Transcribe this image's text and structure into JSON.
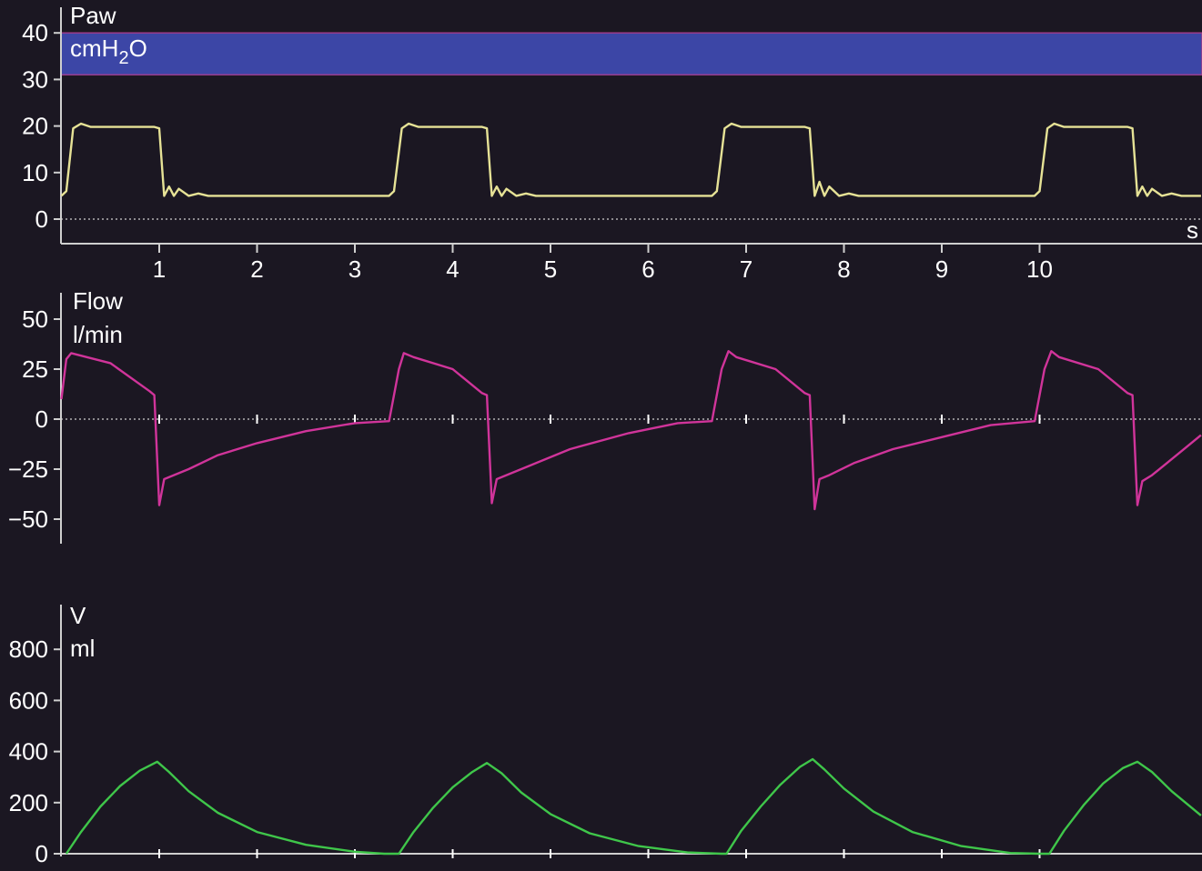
{
  "colors": {
    "background": "#1b1722",
    "axis": "#cfcfcf",
    "paw": "#e6e296",
    "flow": "#d0349a",
    "volume": "#3fc64a",
    "alarm_band": "#3c46a6",
    "alarm_border": "#9b3c8c",
    "text": "#ffffff"
  },
  "chart_data": [
    {
      "type": "line",
      "label": "Paw",
      "unit_main": "cmH",
      "unit_sub": "2",
      "unit_tail": "O",
      "y_ticks": [
        0,
        10,
        20,
        30,
        40
      ],
      "ylim": [
        -3,
        43
      ],
      "x_unit": "s",
      "x_ticks": [
        1,
        2,
        3,
        4,
        5,
        6,
        7,
        8,
        9,
        10
      ],
      "xlim": [
        0,
        11.65
      ],
      "alarm_band": [
        31,
        40
      ],
      "series": [
        {
          "points": [
            [
              0,
              5
            ],
            [
              0.05,
              6
            ],
            [
              0.12,
              19.5
            ],
            [
              0.2,
              20.5
            ],
            [
              0.3,
              19.8
            ],
            [
              0.95,
              19.8
            ],
            [
              1.0,
              19.5
            ],
            [
              1.05,
              5
            ],
            [
              1.1,
              7
            ],
            [
              1.15,
              5
            ],
            [
              1.2,
              6.5
            ],
            [
              1.3,
              5
            ],
            [
              1.4,
              5.5
            ],
            [
              1.5,
              5
            ],
            [
              3.35,
              5
            ],
            [
              3.4,
              6
            ],
            [
              3.48,
              19.5
            ],
            [
              3.55,
              20.5
            ],
            [
              3.65,
              19.8
            ],
            [
              4.3,
              19.8
            ],
            [
              4.35,
              19.5
            ],
            [
              4.4,
              5
            ],
            [
              4.45,
              7
            ],
            [
              4.5,
              5
            ],
            [
              4.55,
              6.5
            ],
            [
              4.65,
              5
            ],
            [
              4.75,
              5.5
            ],
            [
              4.85,
              5
            ],
            [
              6.65,
              5
            ],
            [
              6.7,
              6
            ],
            [
              6.78,
              19.5
            ],
            [
              6.85,
              20.5
            ],
            [
              6.95,
              19.8
            ],
            [
              7.6,
              19.8
            ],
            [
              7.65,
              19.5
            ],
            [
              7.7,
              5
            ],
            [
              7.75,
              8
            ],
            [
              7.8,
              5
            ],
            [
              7.85,
              7
            ],
            [
              7.95,
              5
            ],
            [
              8.05,
              5.5
            ],
            [
              8.15,
              5
            ],
            [
              9.95,
              5
            ],
            [
              10.0,
              6
            ],
            [
              10.08,
              19.5
            ],
            [
              10.15,
              20.5
            ],
            [
              10.25,
              19.8
            ],
            [
              10.9,
              19.8
            ],
            [
              10.95,
              19.5
            ],
            [
              11.0,
              5
            ],
            [
              11.05,
              7
            ],
            [
              11.1,
              5
            ],
            [
              11.15,
              6.5
            ],
            [
              11.25,
              5
            ],
            [
              11.35,
              5.5
            ],
            [
              11.45,
              5
            ],
            [
              11.65,
              5
            ]
          ]
        }
      ]
    },
    {
      "type": "line",
      "label": "Flow",
      "unit_main": "l/min",
      "y_ticks": [
        -50,
        -25,
        0,
        25,
        50
      ],
      "ylim": [
        -62,
        62
      ],
      "x_ticks": [
        1,
        2,
        3,
        4,
        5,
        6,
        7,
        8,
        9,
        10
      ],
      "xlim": [
        0,
        11.65
      ],
      "series": [
        {
          "points": [
            [
              0,
              10
            ],
            [
              0.05,
              30
            ],
            [
              0.1,
              33
            ],
            [
              0.5,
              28
            ],
            [
              0.9,
              14
            ],
            [
              0.95,
              12
            ],
            [
              1.0,
              -43
            ],
            [
              1.05,
              -30
            ],
            [
              1.15,
              -28
            ],
            [
              1.3,
              -25
            ],
            [
              1.6,
              -18
            ],
            [
              2.0,
              -12
            ],
            [
              2.5,
              -6
            ],
            [
              3.0,
              -2
            ],
            [
              3.35,
              -1
            ],
            [
              3.45,
              25
            ],
            [
              3.5,
              33
            ],
            [
              3.6,
              31
            ],
            [
              4.0,
              25
            ],
            [
              4.3,
              13
            ],
            [
              4.35,
              12
            ],
            [
              4.4,
              -42
            ],
            [
              4.45,
              -30
            ],
            [
              4.55,
              -28
            ],
            [
              4.8,
              -23
            ],
            [
              5.2,
              -15
            ],
            [
              5.8,
              -7
            ],
            [
              6.3,
              -2
            ],
            [
              6.65,
              -1
            ],
            [
              6.75,
              25
            ],
            [
              6.82,
              34
            ],
            [
              6.9,
              31
            ],
            [
              7.3,
              25
            ],
            [
              7.6,
              13
            ],
            [
              7.65,
              12
            ],
            [
              7.7,
              -45
            ],
            [
              7.75,
              -30
            ],
            [
              7.85,
              -28
            ],
            [
              8.1,
              -22
            ],
            [
              8.5,
              -15
            ],
            [
              9.0,
              -9
            ],
            [
              9.5,
              -3
            ],
            [
              9.95,
              -1
            ],
            [
              10.05,
              25
            ],
            [
              10.12,
              34
            ],
            [
              10.2,
              31
            ],
            [
              10.6,
              25
            ],
            [
              10.9,
              13
            ],
            [
              10.95,
              12
            ],
            [
              11.0,
              -43
            ],
            [
              11.05,
              -31
            ],
            [
              11.15,
              -28
            ],
            [
              11.3,
              -22
            ],
            [
              11.5,
              -14
            ],
            [
              11.65,
              -8
            ]
          ]
        }
      ]
    },
    {
      "type": "line",
      "label": "V",
      "unit_main": "ml",
      "y_ticks": [
        0,
        200,
        400,
        600,
        800
      ],
      "ylim": [
        -20,
        980
      ],
      "x_ticks": [
        1,
        2,
        3,
        4,
        5,
        6,
        7,
        8,
        9,
        10
      ],
      "xlim": [
        0,
        11.65
      ],
      "series": [
        {
          "points": [
            [
              0.05,
              0
            ],
            [
              0.2,
              85
            ],
            [
              0.4,
              185
            ],
            [
              0.6,
              265
            ],
            [
              0.8,
              325
            ],
            [
              0.98,
              360
            ],
            [
              1.1,
              320
            ],
            [
              1.3,
              245
            ],
            [
              1.6,
              160
            ],
            [
              2.0,
              85
            ],
            [
              2.5,
              35
            ],
            [
              3.0,
              8
            ],
            [
              3.3,
              0
            ],
            [
              3.45,
              0
            ],
            [
              3.6,
              85
            ],
            [
              3.8,
              180
            ],
            [
              4.0,
              260
            ],
            [
              4.2,
              320
            ],
            [
              4.35,
              355
            ],
            [
              4.5,
              315
            ],
            [
              4.7,
              240
            ],
            [
              5.0,
              155
            ],
            [
              5.4,
              80
            ],
            [
              5.9,
              30
            ],
            [
              6.4,
              5
            ],
            [
              6.75,
              0
            ],
            [
              6.8,
              0
            ],
            [
              6.95,
              90
            ],
            [
              7.15,
              185
            ],
            [
              7.35,
              270
            ],
            [
              7.55,
              340
            ],
            [
              7.68,
              370
            ],
            [
              7.8,
              330
            ],
            [
              8.0,
              255
            ],
            [
              8.3,
              165
            ],
            [
              8.7,
              85
            ],
            [
              9.2,
              30
            ],
            [
              9.7,
              3
            ],
            [
              10.0,
              0
            ],
            [
              10.1,
              0
            ],
            [
              10.25,
              90
            ],
            [
              10.45,
              190
            ],
            [
              10.65,
              275
            ],
            [
              10.85,
              335
            ],
            [
              11.0,
              360
            ],
            [
              11.15,
              320
            ],
            [
              11.35,
              245
            ],
            [
              11.65,
              150
            ]
          ]
        }
      ]
    }
  ]
}
